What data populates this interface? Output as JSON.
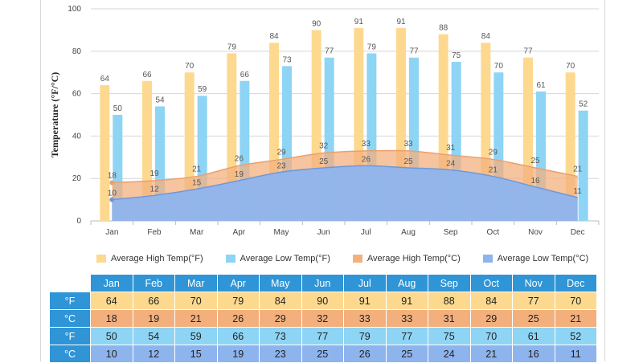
{
  "chart_data": {
    "type": "bar",
    "ylabel": "Temperature (°F/°C)",
    "ylim": [
      0,
      100
    ],
    "yticks": [
      0,
      20,
      40,
      60,
      80,
      100
    ],
    "categories": [
      "Jan",
      "Feb",
      "Mar",
      "Apr",
      "May",
      "Jun",
      "Jul",
      "Aug",
      "Sep",
      "Oct",
      "Nov",
      "Dec"
    ],
    "series": [
      {
        "name": "Average High Temp(°F)",
        "kind": "bar",
        "color": "#fdd990",
        "values": [
          64,
          66,
          70,
          79,
          84,
          90,
          91,
          91,
          88,
          84,
          77,
          70
        ]
      },
      {
        "name": "Average Low Temp(°F)",
        "kind": "bar",
        "color": "#8ed4f5",
        "values": [
          50,
          54,
          59,
          66,
          73,
          77,
          79,
          77,
          75,
          70,
          61,
          52
        ]
      },
      {
        "name": "Average High Temp(°C)",
        "kind": "area",
        "color": "#f3b07d",
        "values": [
          18,
          19,
          21,
          26,
          29,
          32,
          33,
          33,
          31,
          29,
          25,
          21
        ]
      },
      {
        "name": "Average Low Temp(°C)",
        "kind": "area",
        "color": "#8eb4ee",
        "values": [
          10,
          12,
          15,
          19,
          23,
          25,
          26,
          25,
          24,
          21,
          16,
          11
        ]
      }
    ]
  },
  "table": {
    "rows": [
      {
        "unit": "°F",
        "values": [
          64,
          66,
          70,
          79,
          84,
          90,
          91,
          91,
          88,
          84,
          77,
          70
        ]
      },
      {
        "unit": "°C",
        "values": [
          18,
          19,
          21,
          26,
          29,
          32,
          33,
          33,
          31,
          29,
          25,
          21
        ]
      },
      {
        "unit": "°F",
        "values": [
          50,
          54,
          59,
          66,
          73,
          77,
          79,
          77,
          75,
          70,
          61,
          52
        ]
      },
      {
        "unit": "°C",
        "values": [
          10,
          12,
          15,
          19,
          23,
          25,
          26,
          25,
          24,
          21,
          16,
          11
        ]
      }
    ]
  }
}
